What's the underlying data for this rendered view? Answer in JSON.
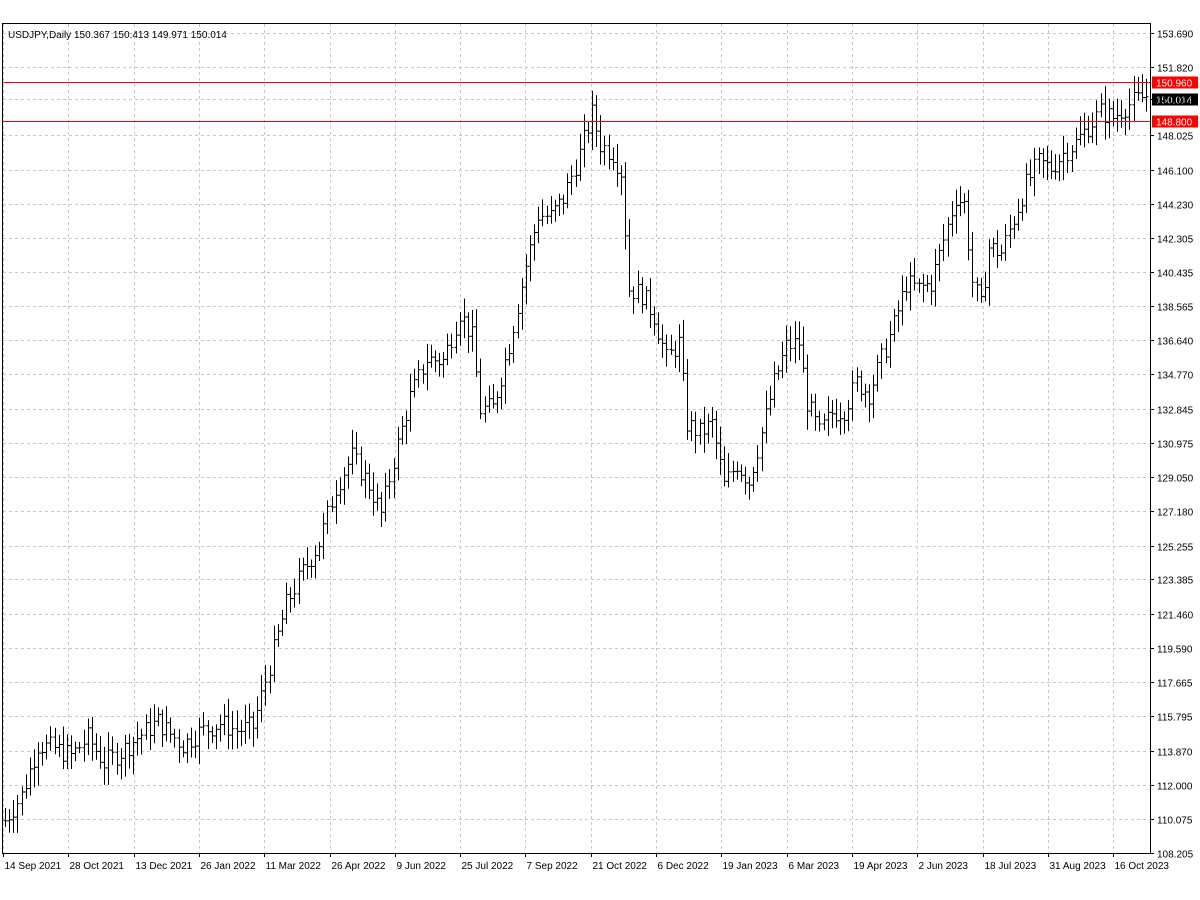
{
  "chart_data": {
    "type": "bar",
    "symbol_label": "USDJPY,Daily  150.367 150.413 149.971 150.014",
    "title": "",
    "xlabel": "",
    "ylabel": "",
    "ylim": [
      108.205,
      153.69
    ],
    "grid": true,
    "y_ticks": [
      153.69,
      151.82,
      150.014,
      148.025,
      146.1,
      144.23,
      142.305,
      140.435,
      138.565,
      136.64,
      134.77,
      132.845,
      130.975,
      129.05,
      127.18,
      125.255,
      123.385,
      121.46,
      119.59,
      117.665,
      115.795,
      113.87,
      112.0,
      110.075,
      108.205
    ],
    "y_tick_labels": [
      "153.690",
      "151.820",
      "150.014",
      "148.025",
      "146.100",
      "144.230",
      "142.305",
      "140.435",
      "138.565",
      "136.640",
      "134.770",
      "132.845",
      "130.975",
      "129.050",
      "127.180",
      "125.255",
      "123.385",
      "121.460",
      "119.590",
      "117.665",
      "115.795",
      "113.870",
      "112.000",
      "110.075",
      "108.205"
    ],
    "x_tick_labels": [
      "14 Sep 2021",
      "28 Oct 2021",
      "13 Dec 2021",
      "26 Jan 2022",
      "11 Mar 2022",
      "26 Apr 2022",
      "9 Jun 2022",
      "25 Jul 2022",
      "7 Sep 2022",
      "21 Oct 2022",
      "6 Dec 2022",
      "19 Jan 2023",
      "6 Mar 2023",
      "19 Apr 2023",
      "2 Jun 2023",
      "18 Jul 2023",
      "31 Aug 2023",
      "16 Oct 2023"
    ],
    "horizontal_lines": [
      {
        "value": 150.96,
        "label": "150.960",
        "color": "#ff0000"
      },
      {
        "value": 148.8,
        "label": "148.800",
        "color": "#ff0000"
      }
    ],
    "current_price": {
      "value": 150.014,
      "label": "150.014"
    },
    "anchors": [
      {
        "x_index": 0,
        "y": 110.0
      },
      {
        "x_index": 4,
        "y": 111.4
      },
      {
        "x_index": 8,
        "y": 114.2
      },
      {
        "x_index": 12,
        "y": 114.0
      },
      {
        "x_index": 16,
        "y": 113.6
      },
      {
        "x_index": 20,
        "y": 114.6
      },
      {
        "x_index": 24,
        "y": 113.2
      },
      {
        "x_index": 28,
        "y": 113.8
      },
      {
        "x_index": 32,
        "y": 114.6
      },
      {
        "x_index": 37,
        "y": 115.5
      },
      {
        "x_index": 40,
        "y": 114.8
      },
      {
        "x_index": 43,
        "y": 114.2
      },
      {
        "x_index": 47,
        "y": 114.9
      },
      {
        "x_index": 52,
        "y": 115.4
      },
      {
        "x_index": 56,
        "y": 115.0
      },
      {
        "x_index": 60,
        "y": 115.2
      },
      {
        "x_index": 64,
        "y": 118.6
      },
      {
        "x_index": 68,
        "y": 122.0
      },
      {
        "x_index": 72,
        "y": 123.8
      },
      {
        "x_index": 76,
        "y": 125.4
      },
      {
        "x_index": 80,
        "y": 128.5
      },
      {
        "x_index": 84,
        "y": 130.2
      },
      {
        "x_index": 88,
        "y": 128.6
      },
      {
        "x_index": 91,
        "y": 127.0
      },
      {
        "x_index": 94,
        "y": 130.0
      },
      {
        "x_index": 98,
        "y": 133.5
      },
      {
        "x_index": 102,
        "y": 135.6
      },
      {
        "x_index": 106,
        "y": 135.5
      },
      {
        "x_index": 110,
        "y": 138.2
      },
      {
        "x_index": 113,
        "y": 136.8
      },
      {
        "x_index": 115,
        "y": 132.8
      },
      {
        "x_index": 118,
        "y": 132.9
      },
      {
        "x_index": 122,
        "y": 136.4
      },
      {
        "x_index": 126,
        "y": 140.8
      },
      {
        "x_index": 129,
        "y": 143.6
      },
      {
        "x_index": 132,
        "y": 143.5
      },
      {
        "x_index": 135,
        "y": 144.5
      },
      {
        "x_index": 139,
        "y": 147.0
      },
      {
        "x_index": 142,
        "y": 149.2
      },
      {
        "x_index": 144,
        "y": 147.5
      },
      {
        "x_index": 147,
        "y": 147.0
      },
      {
        "x_index": 149,
        "y": 146.0
      },
      {
        "x_index": 151,
        "y": 139.5
      },
      {
        "x_index": 154,
        "y": 139.2
      },
      {
        "x_index": 157,
        "y": 138.0
      },
      {
        "x_index": 160,
        "y": 135.6
      },
      {
        "x_index": 163,
        "y": 136.5
      },
      {
        "x_index": 165,
        "y": 132.0
      },
      {
        "x_index": 168,
        "y": 131.5
      },
      {
        "x_index": 171,
        "y": 132.0
      },
      {
        "x_index": 174,
        "y": 128.6
      },
      {
        "x_index": 177,
        "y": 129.8
      },
      {
        "x_index": 180,
        "y": 128.8
      },
      {
        "x_index": 183,
        "y": 131.5
      },
      {
        "x_index": 186,
        "y": 134.3
      },
      {
        "x_index": 189,
        "y": 136.3
      },
      {
        "x_index": 192,
        "y": 136.5
      },
      {
        "x_index": 194,
        "y": 133.2
      },
      {
        "x_index": 197,
        "y": 131.5
      },
      {
        "x_index": 200,
        "y": 132.6
      },
      {
        "x_index": 203,
        "y": 132.8
      },
      {
        "x_index": 206,
        "y": 134.3
      },
      {
        "x_index": 209,
        "y": 133.7
      },
      {
        "x_index": 212,
        "y": 135.6
      },
      {
        "x_index": 215,
        "y": 137.5
      },
      {
        "x_index": 218,
        "y": 139.8
      },
      {
        "x_index": 221,
        "y": 139.5
      },
      {
        "x_index": 224,
        "y": 139.8
      },
      {
        "x_index": 227,
        "y": 142.2
      },
      {
        "x_index": 230,
        "y": 144.6
      },
      {
        "x_index": 232,
        "y": 144.2
      },
      {
        "x_index": 234,
        "y": 139.9
      },
      {
        "x_index": 236,
        "y": 138.5
      },
      {
        "x_index": 238,
        "y": 141.8
      },
      {
        "x_index": 241,
        "y": 141.5
      },
      {
        "x_index": 244,
        "y": 143.4
      },
      {
        "x_index": 247,
        "y": 145.3
      },
      {
        "x_index": 250,
        "y": 146.5
      },
      {
        "x_index": 253,
        "y": 146.2
      },
      {
        "x_index": 256,
        "y": 147.0
      },
      {
        "x_index": 259,
        "y": 147.6
      },
      {
        "x_index": 262,
        "y": 148.5
      },
      {
        "x_index": 265,
        "y": 149.3
      },
      {
        "x_index": 268,
        "y": 149.0
      },
      {
        "x_index": 271,
        "y": 149.6
      },
      {
        "x_index": 274,
        "y": 150.0
      },
      {
        "x_index": 276,
        "y": 150.2
      }
    ],
    "bar_count": 277
  }
}
